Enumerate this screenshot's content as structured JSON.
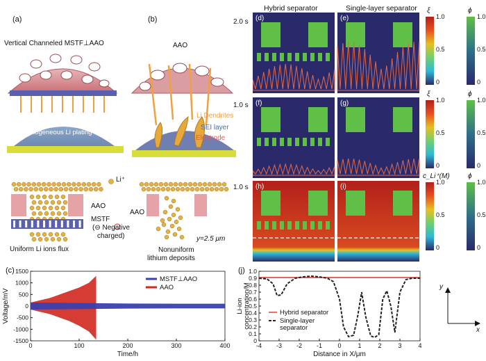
{
  "panel_a": {
    "letter": "(a)",
    "title": "Vertical Channeled MSTF⊥AAO",
    "flux_text": "Uniform Li⁺ flux",
    "plating_text": "Homogeneous Li plating"
  },
  "panel_b": {
    "letter": "(b)",
    "title": "AAO",
    "dendrites": "Li Dendrites",
    "sei": "SEI layer",
    "electrode": "Electrode"
  },
  "lower_schematic": {
    "li_legend": "Li⁺",
    "aao_left": "AAO",
    "aao_mid": "AAO",
    "mstf": "MSTF",
    "negative_line1": "(⊖ Negative",
    "negative_line2": "charged)",
    "uniform_caption": "Uniform Li ions flux",
    "nonuniform_line1": "Nonuniform",
    "nonuniform_line2": "lithium deposits",
    "y_label": "y=2.5 μm"
  },
  "sim_grid": {
    "col_headers": [
      "Hybrid separator",
      "Single-layer separator"
    ],
    "row_times": [
      "2.0 s",
      "1.0 s",
      "1.0 s"
    ],
    "panel_letters": [
      "(d)",
      "(e)",
      "(f)",
      "(g)",
      "(h)",
      "(i)"
    ],
    "colorbars": [
      {
        "symbol": "ξ",
        "ticks": [
          "1.0",
          "0.5",
          "0"
        ],
        "style": "jet"
      },
      {
        "symbol": "ϕ",
        "ticks": [
          "1.0",
          "0.5",
          "0"
        ],
        "style": "green"
      },
      {
        "symbol": "ξ",
        "ticks": [
          "1.0",
          "0.5",
          "0"
        ],
        "style": "jet"
      },
      {
        "symbol": "ϕ",
        "ticks": [
          "1.0",
          "0.5",
          "0"
        ],
        "style": "green"
      },
      {
        "symbol": "c_Li⁺(M)",
        "ticks": [
          "1.0",
          "0.5",
          "0"
        ],
        "style": "jet"
      },
      {
        "symbol": "ϕ",
        "ticks": [
          "1.0",
          "0.5",
          "0"
        ],
        "style": "green"
      }
    ],
    "colors": {
      "background": "#2a2a6b",
      "block": "#5fbf47",
      "deposit": "#c0392b",
      "electrolyte": "#b3201a"
    }
  },
  "axis_diagram": {
    "y": "y",
    "x": "x"
  },
  "chart_data": [
    {
      "panel": "(c)",
      "type": "line",
      "xlabel": "Time/h",
      "ylabel": "Voltage/mV",
      "xlim": [
        0,
        400
      ],
      "ylim": [
        -1500,
        1500
      ],
      "xticks": [
        "0",
        "100",
        "200",
        "300",
        "400"
      ],
      "yticks": [
        "1500",
        "1000",
        "500",
        "0",
        "-500",
        "-1000",
        "-1500"
      ],
      "legend_position": "top-right",
      "series": [
        {
          "name": "MSTF⊥AAO",
          "color": "#3a3fb0",
          "envelope": {
            "x": [
              0,
              50,
              100,
              150,
              200,
              300,
              400
            ],
            "upper": [
              150,
              140,
              130,
              120,
              110,
              100,
              100
            ],
            "lower": [
              -150,
              -140,
              -130,
              -120,
              -110,
              -100,
              -100
            ]
          }
        },
        {
          "name": "AAO",
          "color": "#d0281e",
          "envelope": {
            "x": [
              0,
              20,
              40,
              60,
              80,
              100,
              120,
              135
            ],
            "upper": [
              150,
              250,
              350,
              500,
              650,
              800,
              1000,
              1300
            ],
            "lower": [
              -150,
              -250,
              -350,
              -500,
              -650,
              -850,
              -1100,
              -1450
            ]
          }
        }
      ]
    },
    {
      "panel": "(j)",
      "type": "line",
      "xlabel": "Distance in X/μm",
      "ylabel": "Li-ion concentration/M",
      "xlim": [
        -4,
        4
      ],
      "ylim": [
        0,
        1.0
      ],
      "xticks": [
        "-4",
        "-3",
        "-2",
        "-1",
        "0",
        "1",
        "2",
        "3",
        "4"
      ],
      "yticks": [
        "1.0",
        "0.9",
        "0.8",
        "0.7",
        "0.6",
        "0.5",
        "0.4",
        "0.3",
        "0.2",
        "0.1",
        "0"
      ],
      "legend_position": "center-left",
      "series": [
        {
          "name": "Hybrid separator",
          "color": "#e0312a",
          "style": "solid",
          "x": [
            -4,
            -3,
            -2,
            -1,
            0,
            1,
            2,
            3,
            4
          ],
          "y": [
            0.91,
            0.91,
            0.91,
            0.91,
            0.91,
            0.91,
            0.91,
            0.91,
            0.91
          ]
        },
        {
          "name": "Single-layer separator",
          "color": "#222222",
          "style": "dashed",
          "x": [
            -4,
            -3.6,
            -3.3,
            -3.1,
            -2.9,
            -2.6,
            -2.2,
            -1.8,
            -1.4,
            -1.0,
            -0.6,
            -0.3,
            0.0,
            0.2,
            0.45,
            0.7,
            0.9,
            1.1,
            1.3,
            1.55,
            1.75,
            1.95,
            2.15,
            2.35,
            2.55,
            2.75,
            3.0,
            3.3,
            3.6,
            4.0
          ],
          "y": [
            0.9,
            0.89,
            0.82,
            0.65,
            0.66,
            0.82,
            0.9,
            0.92,
            0.93,
            0.92,
            0.9,
            0.85,
            0.6,
            0.2,
            0.06,
            0.08,
            0.35,
            0.7,
            0.35,
            0.07,
            0.05,
            0.09,
            0.6,
            0.72,
            0.5,
            0.12,
            0.7,
            0.88,
            0.9,
            0.9
          ]
        }
      ]
    }
  ]
}
